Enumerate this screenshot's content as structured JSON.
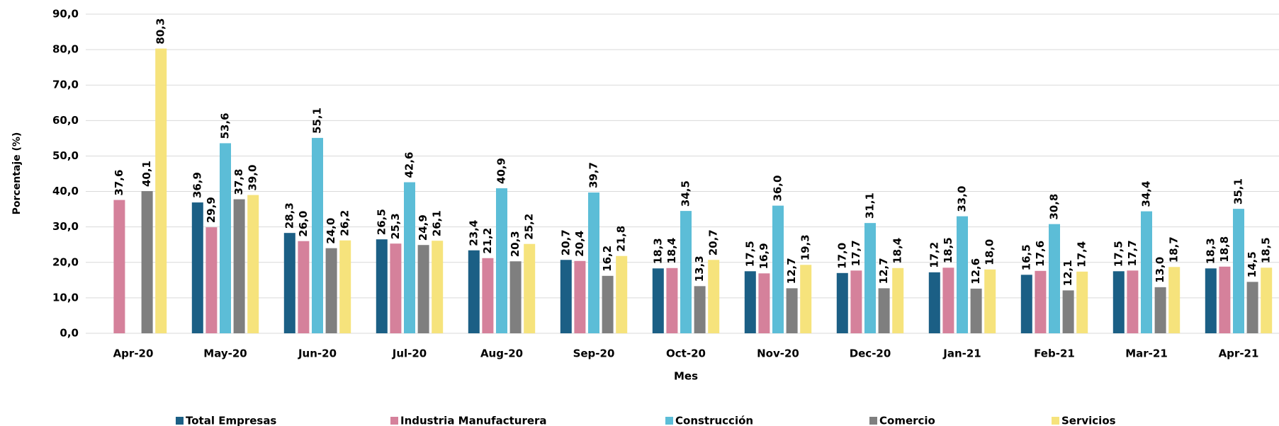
{
  "chart_data": {
    "type": "bar",
    "x_label": "Mes",
    "y_label": "Porcentaje (%)",
    "categories": [
      "Apr-20",
      "May-20",
      "Jun-20",
      "Jul-20",
      "Aug-20",
      "Sep-20",
      "Oct-20",
      "Nov-20",
      "Dec-20",
      "Jan-21",
      "Feb-21",
      "Mar-21",
      "Apr-21"
    ],
    "series": [
      {
        "name": "Total Empresas",
        "color": "#1b5f85",
        "values": [
          null,
          36.9,
          28.3,
          26.5,
          23.4,
          20.7,
          18.3,
          17.5,
          17.0,
          17.2,
          16.5,
          17.5,
          18.3
        ],
        "value_labels": [
          null,
          "36,9",
          "28,3",
          "26,5",
          "23,4",
          "20,7",
          "18,3",
          "17,5",
          "17,0",
          "17,2",
          "16,5",
          "17,5",
          "18,3"
        ]
      },
      {
        "name": "Industria Manufacturera",
        "color": "#d5819b",
        "values": [
          37.6,
          29.9,
          26.0,
          25.3,
          21.2,
          20.4,
          18.4,
          16.9,
          17.7,
          18.5,
          17.6,
          17.7,
          18.8
        ],
        "value_labels": [
          "37,6",
          "29,9",
          "26,0",
          "25,3",
          "21,2",
          "20,4",
          "18,4",
          "16,9",
          "17,7",
          "18,5",
          "17,6",
          "17,7",
          "18,8"
        ]
      },
      {
        "name": "Construcción",
        "color": "#5cbdd7",
        "values": [
          null,
          53.6,
          55.1,
          42.6,
          40.9,
          39.7,
          34.5,
          36.0,
          31.1,
          33.0,
          30.8,
          34.4,
          35.1
        ],
        "value_labels": [
          null,
          "53,6",
          "55,1",
          "42,6",
          "40,9",
          "39,7",
          "34,5",
          "36,0",
          "31,1",
          "33,0",
          "30,8",
          "34,4",
          "35,1"
        ]
      },
      {
        "name": "Comercio",
        "color": "#7f7f7f",
        "values": [
          40.1,
          37.8,
          24.0,
          24.9,
          20.3,
          16.2,
          13.3,
          12.7,
          12.7,
          12.6,
          12.1,
          13.0,
          14.5
        ],
        "value_labels": [
          "40,1",
          "37,8",
          "24,0",
          "24,9",
          "20,3",
          "16,2",
          "13,3",
          "12,7",
          "12,7",
          "12,6",
          "12,1",
          "13,0",
          "14,5"
        ]
      },
      {
        "name": "Servicios",
        "color": "#f6e37c",
        "values": [
          80.3,
          39.0,
          26.2,
          26.1,
          25.2,
          21.8,
          20.7,
          19.3,
          18.4,
          18.0,
          17.4,
          18.7,
          18.5
        ],
        "value_labels": [
          "80,3",
          "39,0",
          "26,2",
          "26,1",
          "25,2",
          "21,8",
          "20,7",
          "19,3",
          "18,4",
          "18,0",
          "17,4",
          "18,7",
          "18,5"
        ]
      }
    ],
    "ylim": [
      0,
      90
    ],
    "yticks": [
      {
        "value": 0,
        "label": "0,0"
      },
      {
        "value": 10,
        "label": "10,0"
      },
      {
        "value": 20,
        "label": "20,0"
      },
      {
        "value": 30,
        "label": "30,0"
      },
      {
        "value": 40,
        "label": "40,0"
      },
      {
        "value": 50,
        "label": "50,0"
      },
      {
        "value": 60,
        "label": "60,0"
      },
      {
        "value": 70,
        "label": "70,0"
      },
      {
        "value": 80,
        "label": "80,0"
      },
      {
        "value": 90,
        "label": "90,0"
      }
    ],
    "grid": true,
    "legend": "bottom"
  }
}
